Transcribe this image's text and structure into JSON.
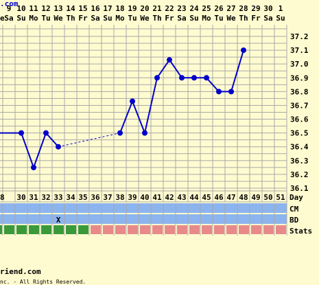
{
  "header": {
    "site_fragment": ".com"
  },
  "footer": {
    "site": "riend.com",
    "copyright": "nc. - All Rights Reserved."
  },
  "row_labels": {
    "day": "Day",
    "cm": "CM",
    "bd": "BD",
    "stats": "Stats"
  },
  "colors": {
    "background": "#fffbd0",
    "grid": "#a8a8a8",
    "line": "#0000cc",
    "row_band": "#8cb4ee",
    "stats_green": "#3a9a3a",
    "stats_pink": "#e88a8a"
  },
  "chart_data": {
    "type": "line",
    "title": "",
    "xlabel": "Day",
    "ylabel": "",
    "ylim": [
      36.1,
      37.2
    ],
    "y_ticks": [
      "37.2",
      "37.1",
      "37.0",
      "36.9",
      "36.8",
      "36.7",
      "36.6",
      "36.5",
      "36.4",
      "36.3",
      "36.2",
      "36.1"
    ],
    "dates": [
      "9",
      "10",
      "11",
      "12",
      "13",
      "14",
      "15",
      "16",
      "17",
      "18",
      "19",
      "20",
      "21",
      "22",
      "23",
      "24",
      "25",
      "26",
      "27",
      "28",
      "29",
      "30",
      "1"
    ],
    "weekdays": [
      "Sa",
      "Su",
      "Mo",
      "Tu",
      "We",
      "Th",
      "Fr",
      "Sa",
      "Su",
      "Mo",
      "Tu",
      "We",
      "Th",
      "Fr",
      "Sa",
      "Su",
      "Mo",
      "Tu",
      "We",
      "Th",
      "Fr",
      "Sa",
      "Su"
    ],
    "weekday_partial": "e",
    "cycle_days": [
      "8",
      "30",
      "31",
      "32",
      "33",
      "34",
      "35",
      "36",
      "37",
      "38",
      "39",
      "40",
      "41",
      "42",
      "43",
      "44",
      "45",
      "46",
      "47",
      "48",
      "49",
      "50",
      "51"
    ],
    "cycle_day_partial": "28",
    "series": [
      {
        "values": [
          null,
          36.5,
          36.25,
          36.5,
          36.4,
          null,
          null,
          null,
          null,
          36.5,
          36.73,
          36.5,
          36.9,
          37.03,
          36.9,
          36.9,
          36.9,
          36.8,
          36.8,
          37.1,
          null,
          null,
          null
        ],
        "leading_value": 36.5,
        "dashed_gap": [
          4,
          9
        ]
      }
    ],
    "bd_marks": [
      "33"
    ],
    "bd_symbol": "X",
    "stats_green_until": "35"
  }
}
